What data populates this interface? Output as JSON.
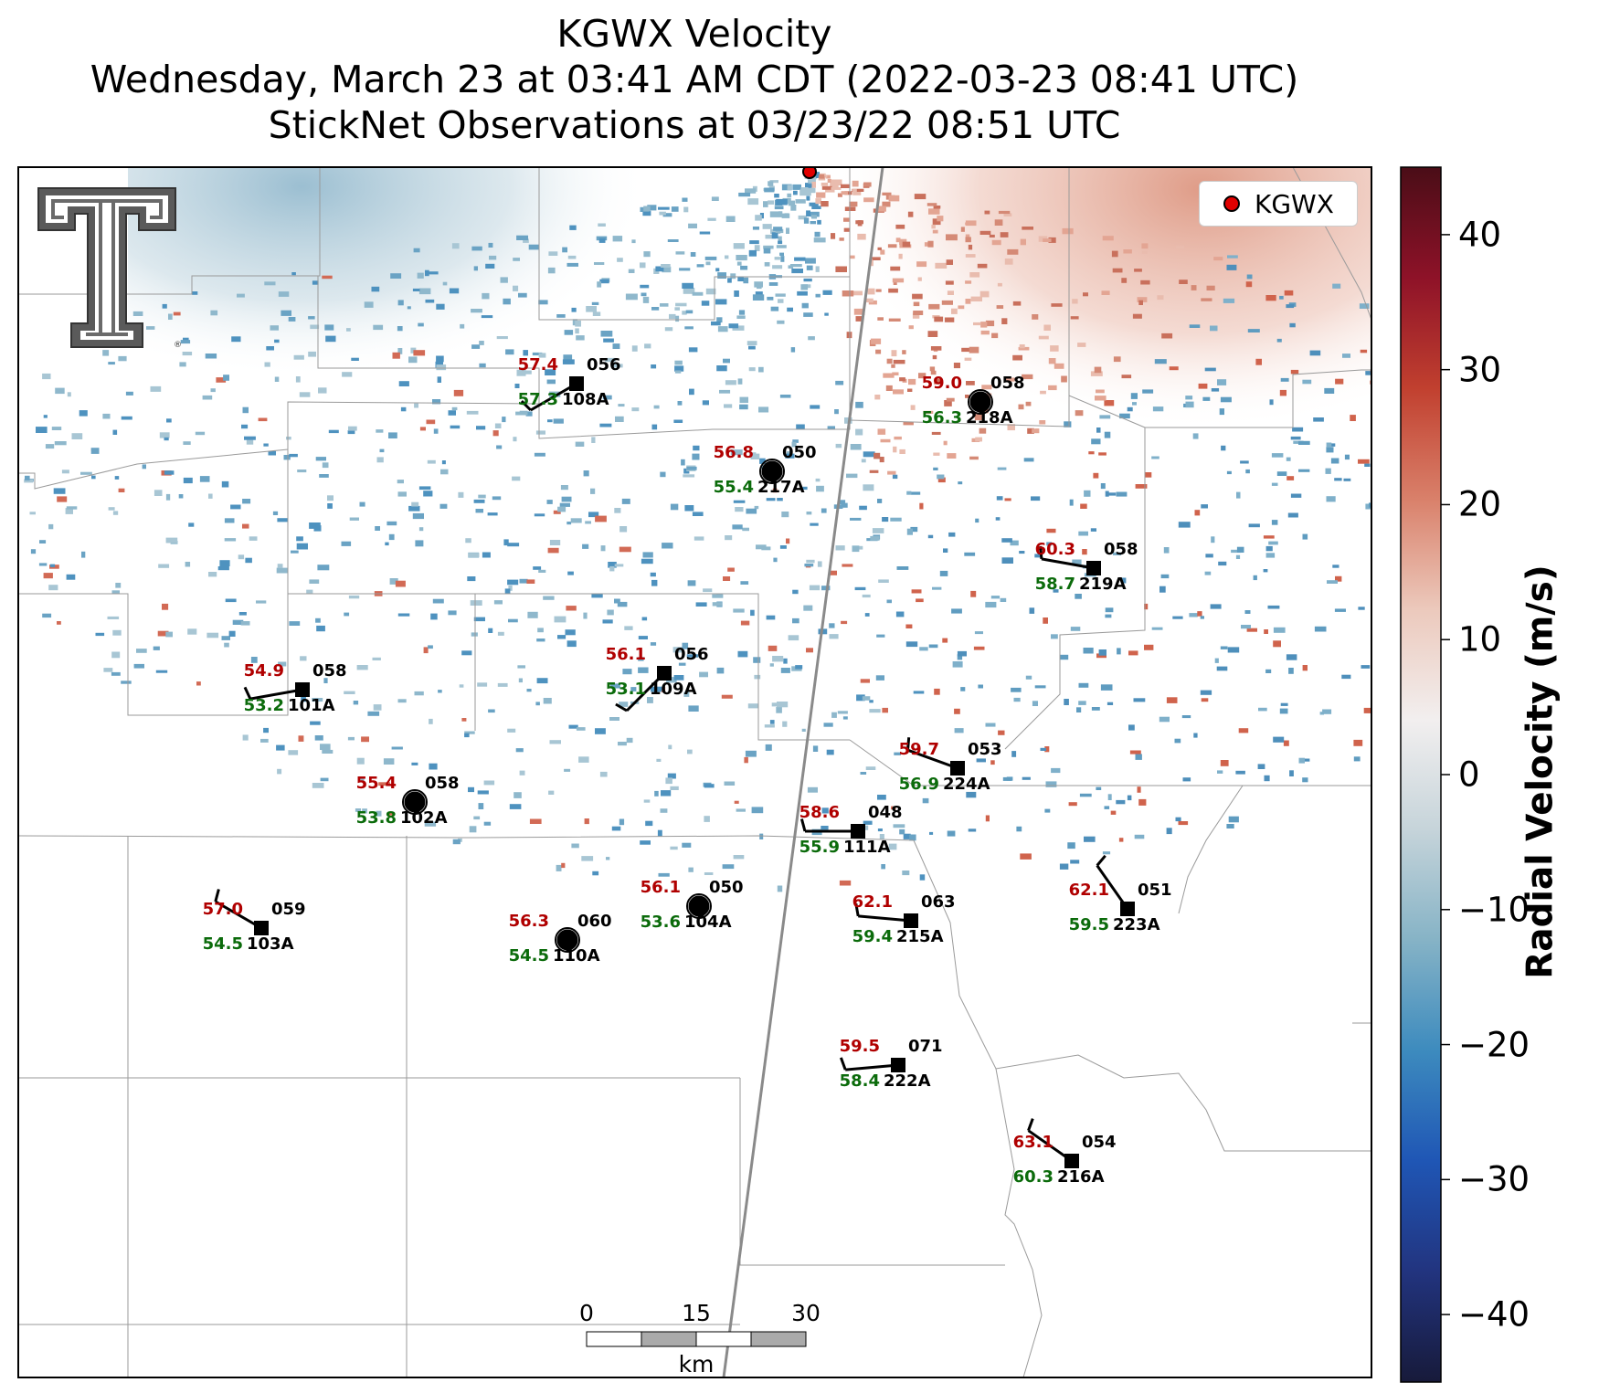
{
  "title": {
    "line1": "KGWX Velocity",
    "line2": "Wednesday, March 23 at 03:41 AM CDT (2022-03-23 08:41 UTC)",
    "line3": "StickNet Observations at 03/23/22 08:51 UTC"
  },
  "legend": {
    "label": "KGWX",
    "marker_color": "#e00000"
  },
  "colorbar": {
    "label": "Radial Velocity (m/s)",
    "range": [
      -45,
      45
    ],
    "ticks": [
      "40",
      "30",
      "20",
      "10",
      "0",
      "−10",
      "−20",
      "−30",
      "−40"
    ],
    "colors": [
      "#4a0d17",
      "#8e1228",
      "#c1402f",
      "#d9806a",
      "#ecc9bc",
      "#f2efef",
      "#c6d4da",
      "#86b3c6",
      "#3d8bbe",
      "#1f56b5",
      "#22347f",
      "#171a3a"
    ]
  },
  "scale_bar": {
    "ticks": [
      "0",
      "15",
      "30"
    ],
    "unit": "km"
  },
  "logo": {
    "icon": "texas-tech-double-t-logo"
  },
  "stations": [
    {
      "id": "108A",
      "temp": "57.4",
      "dew": "57.3",
      "pres": "056",
      "marker": "square",
      "wind_dir": 240
    },
    {
      "id": "218A",
      "temp": "59.0",
      "dew": "56.3",
      "pres": "058",
      "marker": "circle",
      "wind_dir": null
    },
    {
      "id": "217A",
      "temp": "56.8",
      "dew": "55.4",
      "pres": "050",
      "marker": "circle",
      "wind_dir": null
    },
    {
      "id": "219A",
      "temp": "60.3",
      "dew": "58.7",
      "pres": "058",
      "marker": "square",
      "wind_dir": 280
    },
    {
      "id": "101A",
      "temp": "54.9",
      "dew": "53.2",
      "pres": "058",
      "marker": "square",
      "wind_dir": 260
    },
    {
      "id": "109A",
      "temp": "56.1",
      "dew": "53.1",
      "pres": "056",
      "marker": "square",
      "wind_dir": 225
    },
    {
      "id": "224A",
      "temp": "59.7",
      "dew": "56.9",
      "pres": "053",
      "marker": "square",
      "wind_dir": 290
    },
    {
      "id": "102A",
      "temp": "55.4",
      "dew": "53.8",
      "pres": "058",
      "marker": "circle",
      "wind_dir": null
    },
    {
      "id": "111A",
      "temp": "58.6",
      "dew": "55.9",
      "pres": "048",
      "marker": "square",
      "wind_dir": 270
    },
    {
      "id": "103A",
      "temp": "57.0",
      "dew": "54.5",
      "pres": "059",
      "marker": "square",
      "wind_dir": 300
    },
    {
      "id": "104A",
      "temp": "56.1",
      "dew": "53.6",
      "pres": "050",
      "marker": "circle",
      "wind_dir": null
    },
    {
      "id": "110A",
      "temp": "56.3",
      "dew": "54.5",
      "pres": "060",
      "marker": "circle",
      "wind_dir": null
    },
    {
      "id": "215A",
      "temp": "62.1",
      "dew": "59.4",
      "pres": "063",
      "marker": "square",
      "wind_dir": 275
    },
    {
      "id": "223A",
      "temp": "62.1",
      "dew": "59.5",
      "pres": "051",
      "marker": "square",
      "wind_dir": 325
    },
    {
      "id": "222A",
      "temp": "59.5",
      "dew": "58.4",
      "pres": "071",
      "marker": "square",
      "wind_dir": 265
    },
    {
      "id": "216A",
      "temp": "63.1",
      "dew": "60.3",
      "pres": "054",
      "marker": "square",
      "wind_dir": 305
    }
  ]
}
